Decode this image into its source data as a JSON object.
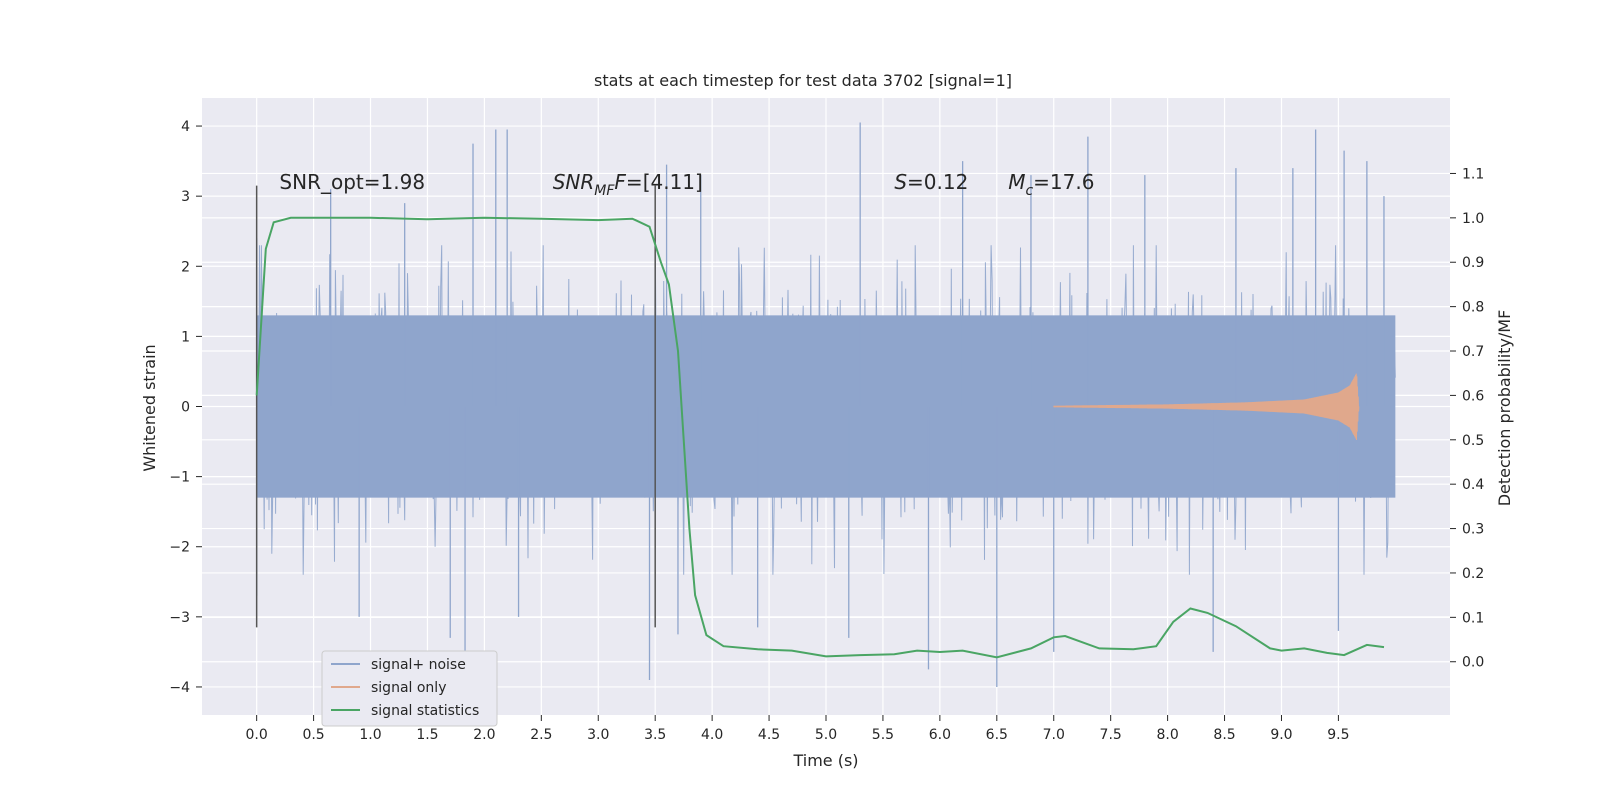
{
  "chart_data": {
    "type": "line",
    "title": "stats at each timestep for test data 3702 [signal=1]",
    "xlabel": "Time (s)",
    "ylabel": "Whitened strain",
    "y2label": "Detection probability/MF",
    "xlim": [
      -0.48,
      10.48
    ],
    "ylim": [
      -4.4,
      4.4
    ],
    "y2lim": [
      -0.12,
      1.27
    ],
    "x_ticks": [
      0.0,
      0.5,
      1.0,
      1.5,
      2.0,
      2.5,
      3.0,
      3.5,
      4.0,
      4.5,
      5.0,
      5.5,
      6.0,
      6.5,
      7.0,
      7.5,
      8.0,
      8.5,
      9.0,
      9.5
    ],
    "x_tick_labels": [
      "0.0",
      "0.5",
      "1.0",
      "1.5",
      "2.0",
      "2.5",
      "3.0",
      "3.5",
      "4.0",
      "4.5",
      "5.0",
      "5.5",
      "6.0",
      "6.5",
      "7.0",
      "7.5",
      "8.0",
      "8.5",
      "9.0",
      "9.5"
    ],
    "y_ticks": [
      4,
      3,
      2,
      1,
      0,
      -1,
      -2,
      -3,
      -4
    ],
    "y_tick_labels": [
      "4",
      "3",
      "2",
      "1",
      "0",
      "−1",
      "−2",
      "−3",
      "−4"
    ],
    "y2_ticks": [
      1.1,
      1.0,
      0.9,
      0.8,
      0.7,
      0.6,
      0.5,
      0.4,
      0.3,
      0.2,
      0.1,
      0.0
    ],
    "y2_tick_labels": [
      "1.1",
      "1.0",
      "0.9",
      "0.8",
      "0.7",
      "0.6",
      "0.5",
      "0.4",
      "0.3",
      "0.2",
      "0.1",
      "0.0"
    ],
    "grid": true,
    "legend_position": "lower-left",
    "series": [
      {
        "name": "signal+ noise",
        "axis": "left",
        "color": "#8fa5cc",
        "x_range": [
          0.0,
          10.0
        ],
        "band_typical": [
          -1.3,
          1.3
        ],
        "band_envelope": [
          -2.2,
          2.0
        ],
        "extreme_peaks": [
          {
            "x": 0.0,
            "y": 2.4
          },
          {
            "x": 0.0,
            "y": -2.7
          },
          {
            "x": 0.65,
            "y": 3.1
          },
          {
            "x": 0.9,
            "y": -3.0
          },
          {
            "x": 1.3,
            "y": 2.9
          },
          {
            "x": 1.7,
            "y": -3.3
          },
          {
            "x": 1.83,
            "y": -3.5
          },
          {
            "x": 1.9,
            "y": 3.75
          },
          {
            "x": 2.1,
            "y": 3.95
          },
          {
            "x": 2.2,
            "y": 3.95
          },
          {
            "x": 2.3,
            "y": -3.0
          },
          {
            "x": 3.45,
            "y": -3.9
          },
          {
            "x": 3.6,
            "y": 3.45
          },
          {
            "x": 3.7,
            "y": -3.25
          },
          {
            "x": 3.9,
            "y": 3.3
          },
          {
            "x": 4.4,
            "y": -3.15
          },
          {
            "x": 5.2,
            "y": -3.3
          },
          {
            "x": 5.3,
            "y": 4.05
          },
          {
            "x": 5.9,
            "y": -3.75
          },
          {
            "x": 6.2,
            "y": 3.5
          },
          {
            "x": 6.5,
            "y": -4.0
          },
          {
            "x": 6.8,
            "y": 3.3
          },
          {
            "x": 7.0,
            "y": -3.5
          },
          {
            "x": 7.3,
            "y": 3.85
          },
          {
            "x": 7.8,
            "y": 3.3
          },
          {
            "x": 8.4,
            "y": -3.5
          },
          {
            "x": 8.6,
            "y": 3.4
          },
          {
            "x": 9.1,
            "y": 3.4
          },
          {
            "x": 9.3,
            "y": 3.95
          },
          {
            "x": 9.5,
            "y": -3.2
          },
          {
            "x": 9.55,
            "y": 3.65
          },
          {
            "x": 9.75,
            "y": 3.5
          },
          {
            "x": 9.9,
            "y": 3.0
          }
        ]
      },
      {
        "name": "signal only",
        "axis": "left",
        "color": "#e0a88c",
        "x_range": [
          7.0,
          9.68
        ],
        "envelope": [
          {
            "x": 7.0,
            "a": 0.01
          },
          {
            "x": 8.0,
            "a": 0.03
          },
          {
            "x": 8.7,
            "a": 0.06
          },
          {
            "x": 9.2,
            "a": 0.1
          },
          {
            "x": 9.5,
            "a": 0.2
          },
          {
            "x": 9.6,
            "a": 0.3
          },
          {
            "x": 9.66,
            "a": 0.48
          },
          {
            "x": 9.68,
            "a": 0.0
          }
        ]
      },
      {
        "name": "signal statistics",
        "axis": "right",
        "color": "#4aa564",
        "points": [
          {
            "x": 0.0,
            "y": 0.6
          },
          {
            "x": 0.08,
            "y": 0.93
          },
          {
            "x": 0.15,
            "y": 0.99
          },
          {
            "x": 0.3,
            "y": 1.0
          },
          {
            "x": 1.0,
            "y": 1.0
          },
          {
            "x": 1.5,
            "y": 0.997
          },
          {
            "x": 2.0,
            "y": 1.0
          },
          {
            "x": 2.5,
            "y": 0.998
          },
          {
            "x": 3.0,
            "y": 0.995
          },
          {
            "x": 3.3,
            "y": 0.998
          },
          {
            "x": 3.45,
            "y": 0.98
          },
          {
            "x": 3.55,
            "y": 0.9
          },
          {
            "x": 3.62,
            "y": 0.85
          },
          {
            "x": 3.7,
            "y": 0.7
          },
          {
            "x": 3.75,
            "y": 0.5
          },
          {
            "x": 3.8,
            "y": 0.3
          },
          {
            "x": 3.85,
            "y": 0.15
          },
          {
            "x": 3.95,
            "y": 0.06
          },
          {
            "x": 4.1,
            "y": 0.035
          },
          {
            "x": 4.4,
            "y": 0.028
          },
          {
            "x": 4.7,
            "y": 0.025
          },
          {
            "x": 5.0,
            "y": 0.012
          },
          {
            "x": 5.3,
            "y": 0.015
          },
          {
            "x": 5.6,
            "y": 0.017
          },
          {
            "x": 5.8,
            "y": 0.025
          },
          {
            "x": 6.0,
            "y": 0.022
          },
          {
            "x": 6.2,
            "y": 0.025
          },
          {
            "x": 6.5,
            "y": 0.01
          },
          {
            "x": 6.8,
            "y": 0.03
          },
          {
            "x": 7.0,
            "y": 0.055
          },
          {
            "x": 7.1,
            "y": 0.058
          },
          {
            "x": 7.4,
            "y": 0.03
          },
          {
            "x": 7.7,
            "y": 0.028
          },
          {
            "x": 7.9,
            "y": 0.035
          },
          {
            "x": 8.05,
            "y": 0.09
          },
          {
            "x": 8.2,
            "y": 0.12
          },
          {
            "x": 8.35,
            "y": 0.11
          },
          {
            "x": 8.6,
            "y": 0.08
          },
          {
            "x": 8.9,
            "y": 0.03
          },
          {
            "x": 9.0,
            "y": 0.025
          },
          {
            "x": 9.2,
            "y": 0.03
          },
          {
            "x": 9.4,
            "y": 0.02
          },
          {
            "x": 9.55,
            "y": 0.015
          },
          {
            "x": 9.75,
            "y": 0.038
          },
          {
            "x": 9.9,
            "y": 0.033
          }
        ]
      }
    ],
    "vlines": [
      {
        "x": 0.0,
        "ymin": -3.15,
        "ymax": 3.15,
        "color": "#555555"
      },
      {
        "x": 3.5,
        "ymin": -3.15,
        "ymax": 3.15,
        "color": "#555555"
      }
    ],
    "annotations": [
      {
        "id": "snr_opt",
        "text": "SNR_opt=1.98",
        "x": 0.2,
        "y": 3.1
      },
      {
        "id": "snr_mf",
        "text": "[4.11]",
        "x": 2.6,
        "y": 3.1
      },
      {
        "id": "s_val",
        "text": "0.12",
        "x": 5.6,
        "y": 3.1
      },
      {
        "id": "mc_val",
        "text": "17.6",
        "x": 6.6,
        "y": 3.1
      }
    ]
  }
}
